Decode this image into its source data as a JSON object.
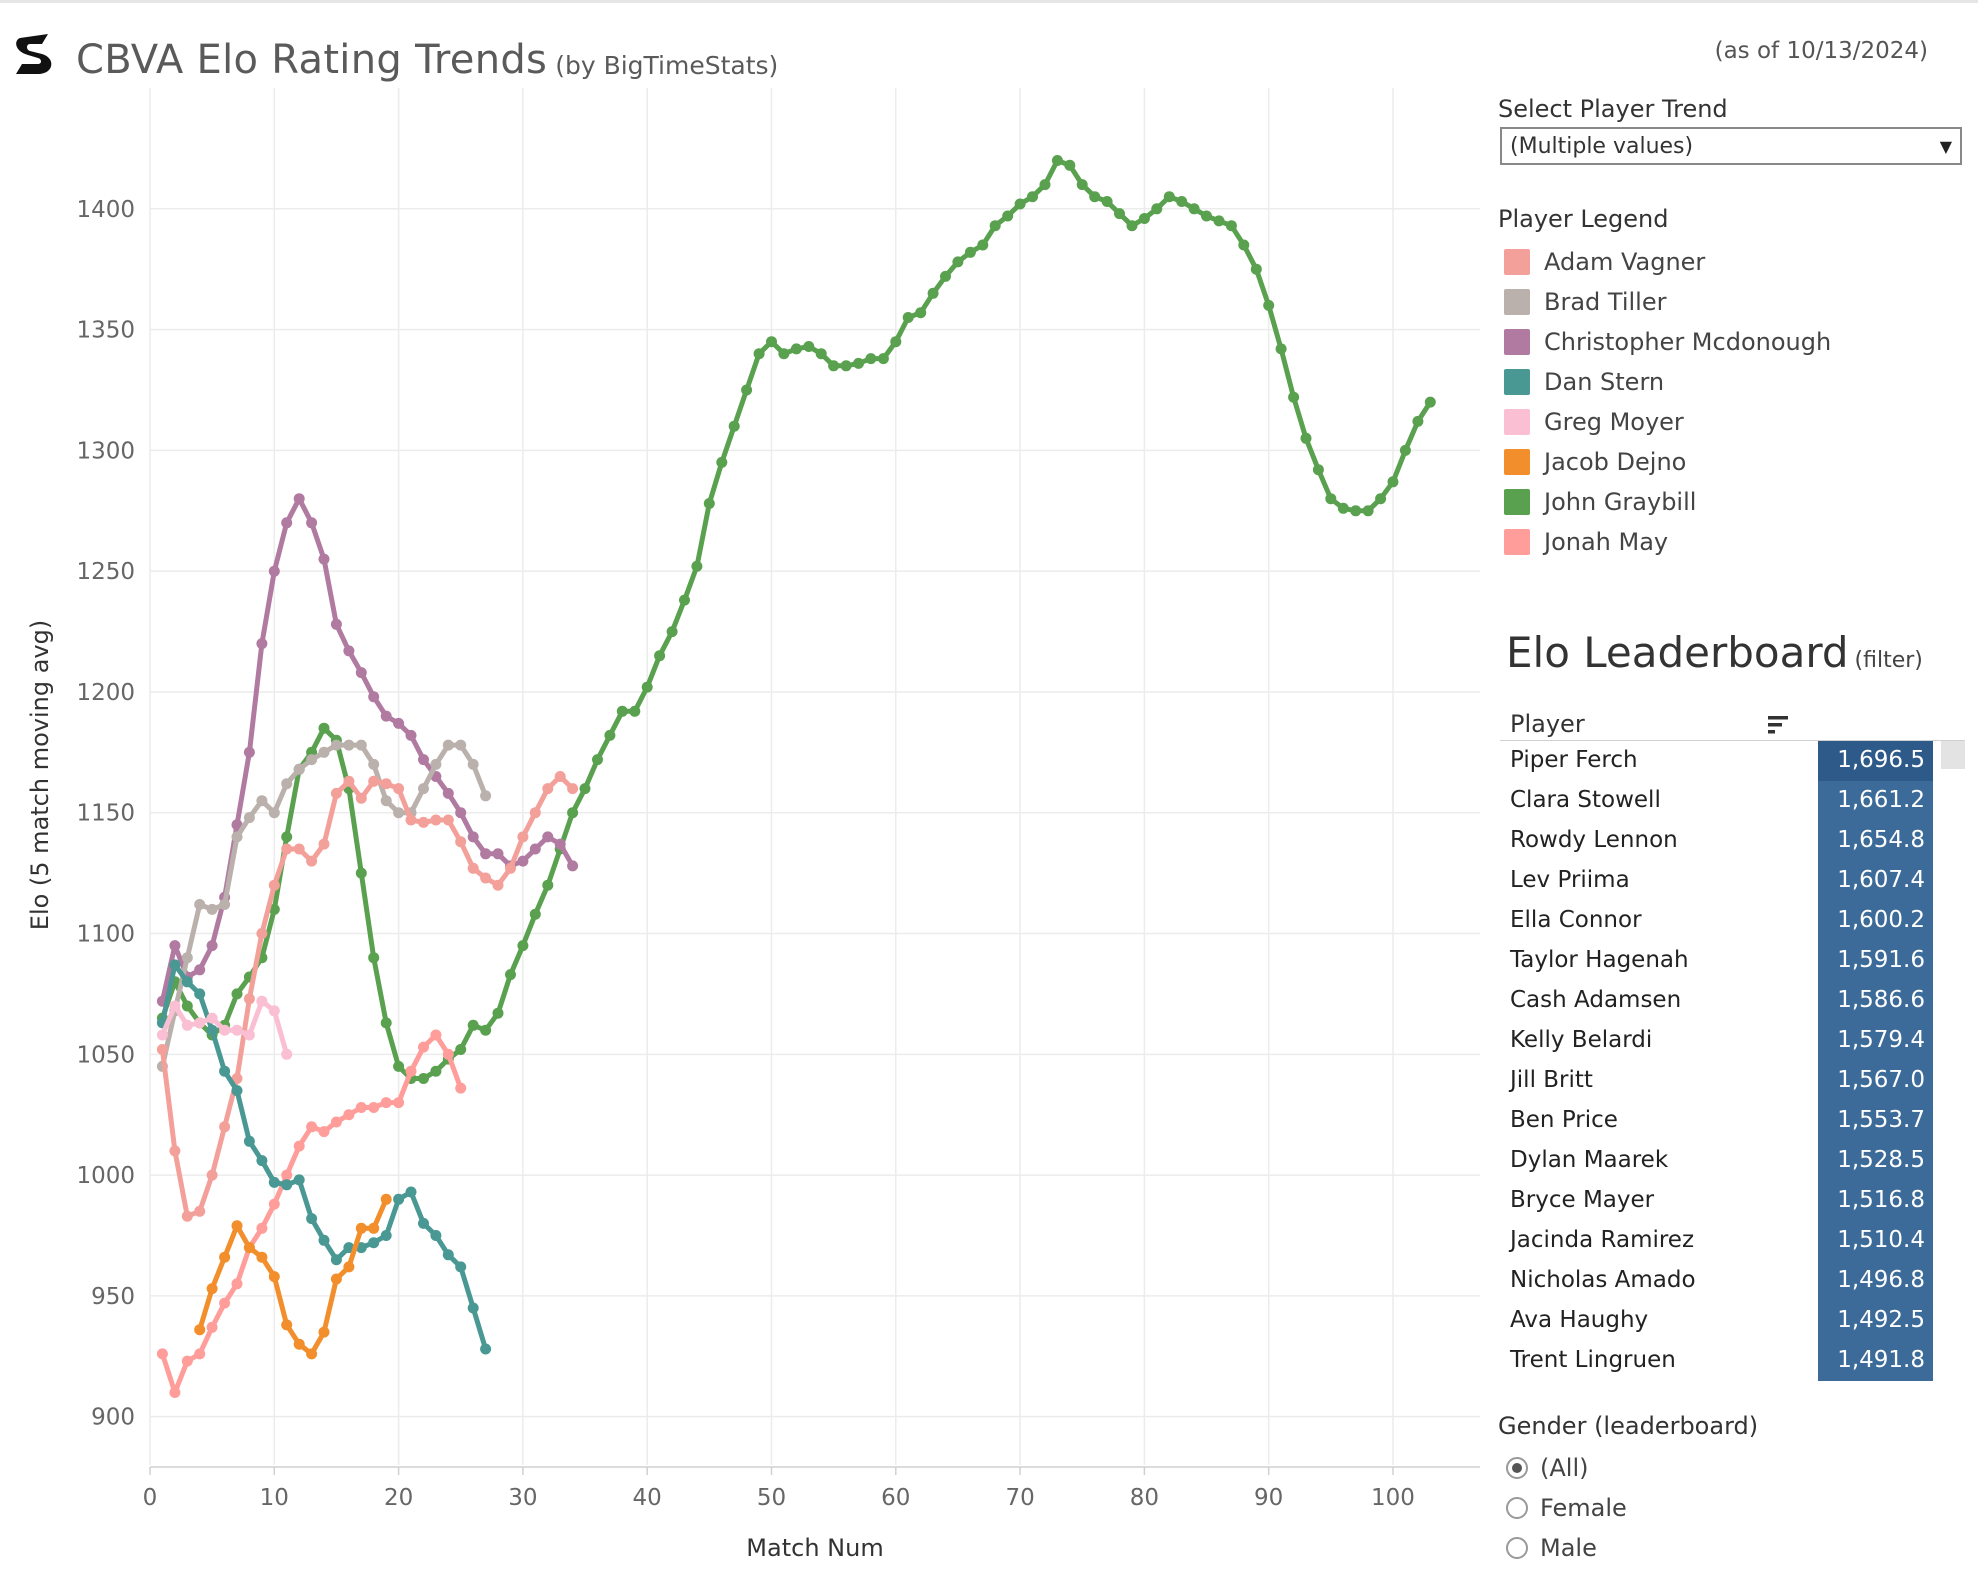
{
  "header": {
    "title": "CBVA Elo Rating Trends",
    "subtitle": "(by BigTimeStats)",
    "as_of": "(as of 10/13/2024)"
  },
  "controls": {
    "select_label": "Select Player Trend",
    "select_value": "(Multiple values)",
    "legend_title": "Player Legend"
  },
  "legend": [
    {
      "name": "Adam Vagner",
      "color": "#f4a09a"
    },
    {
      "name": "Brad Tiller",
      "color": "#bab0ac"
    },
    {
      "name": "Christopher Mcdonough",
      "color": "#b07aa1"
    },
    {
      "name": "Dan Stern",
      "color": "#499894"
    },
    {
      "name": "Greg Moyer",
      "color": "#fabfd2"
    },
    {
      "name": "Jacob Dejno",
      "color": "#f28e2b"
    },
    {
      "name": "John Graybill",
      "color": "#59a14f"
    },
    {
      "name": "Jonah May",
      "color": "#ff9d9a"
    }
  ],
  "leaderboard": {
    "title": "Elo Leaderboard",
    "filter_note": "(filter)",
    "column_header": "Player",
    "rows": [
      {
        "player": "Piper Ferch",
        "elo": "1,696.5"
      },
      {
        "player": "Clara Stowell",
        "elo": "1,661.2"
      },
      {
        "player": "Rowdy Lennon",
        "elo": "1,654.8"
      },
      {
        "player": "Lev Priima",
        "elo": "1,607.4"
      },
      {
        "player": "Ella Connor",
        "elo": "1,600.2"
      },
      {
        "player": "Taylor Hagenah",
        "elo": "1,591.6"
      },
      {
        "player": "Cash Adamsen",
        "elo": "1,586.6"
      },
      {
        "player": "Kelly Belardi",
        "elo": "1,579.4"
      },
      {
        "player": "Jill Britt",
        "elo": "1,567.0"
      },
      {
        "player": "Ben Price",
        "elo": "1,553.7"
      },
      {
        "player": "Dylan Maarek",
        "elo": "1,528.5"
      },
      {
        "player": "Bryce Mayer",
        "elo": "1,516.8"
      },
      {
        "player": "Jacinda Ramirez",
        "elo": "1,510.4"
      },
      {
        "player": "Nicholas Amado",
        "elo": "1,496.8"
      },
      {
        "player": "Ava Haughy",
        "elo": "1,492.5"
      },
      {
        "player": "Trent Lingruen",
        "elo": "1,491.8"
      }
    ]
  },
  "gender_filter": {
    "title": "Gender (leaderboard)",
    "options": [
      "(All)",
      "Female",
      "Male"
    ],
    "selected": "(All)"
  },
  "chart_data": {
    "type": "line",
    "xlabel": "Match Num",
    "ylabel": "Elo (5 match moving avg)",
    "xlim": [
      0,
      107
    ],
    "ylim": [
      880,
      1450
    ],
    "xticks": [
      0,
      10,
      20,
      30,
      40,
      50,
      60,
      70,
      80,
      90,
      100
    ],
    "yticks": [
      900,
      950,
      1000,
      1050,
      1100,
      1150,
      1200,
      1250,
      1300,
      1350,
      1400
    ],
    "grid": true,
    "legend": "right panel",
    "series": [
      {
        "name": "John Graybill",
        "color": "#59a14f",
        "x_start": 1,
        "values": [
          1065,
          1080,
          1070,
          1063,
          1058,
          1062,
          1075,
          1082,
          1090,
          1110,
          1140,
          1168,
          1175,
          1185,
          1180,
          1160,
          1125,
          1090,
          1063,
          1045,
          1040,
          1040,
          1043,
          1048,
          1052,
          1062,
          1060,
          1067,
          1083,
          1095,
          1108,
          1120,
          1135,
          1150,
          1160,
          1172,
          1182,
          1192,
          1192,
          1202,
          1215,
          1225,
          1238,
          1252,
          1278,
          1295,
          1310,
          1325,
          1340,
          1345,
          1340,
          1342,
          1343,
          1340,
          1335,
          1335,
          1336,
          1338,
          1338,
          1345,
          1355,
          1357,
          1365,
          1372,
          1378,
          1382,
          1385,
          1393,
          1397,
          1402,
          1405,
          1410,
          1420,
          1418,
          1410,
          1405,
          1403,
          1398,
          1393,
          1396,
          1400,
          1405,
          1403,
          1400,
          1397,
          1395,
          1393,
          1385,
          1375,
          1360,
          1342,
          1322,
          1305,
          1292,
          1280,
          1276,
          1275,
          1275,
          1280,
          1287,
          1300,
          1312,
          1320
        ]
      },
      {
        "name": "Christopher Mcdonough",
        "color": "#b07aa1",
        "x_start": 1,
        "values": [
          1072,
          1095,
          1082,
          1085,
          1095,
          1115,
          1145,
          1175,
          1220,
          1250,
          1270,
          1280,
          1270,
          1255,
          1228,
          1217,
          1208,
          1198,
          1190,
          1187,
          1182,
          1172,
          1165,
          1158,
          1150,
          1140,
          1133,
          1133,
          1128,
          1130,
          1135,
          1140,
          1137,
          1128
        ]
      },
      {
        "name": "Brad Tiller",
        "color": "#bab0ac",
        "x_start": 1,
        "values": [
          1045,
          1068,
          1090,
          1112,
          1110,
          1112,
          1140,
          1148,
          1155,
          1150,
          1162,
          1168,
          1172,
          1175,
          1178,
          1178,
          1178,
          1170,
          1155,
          1150,
          1150,
          1160,
          1170,
          1178,
          1178,
          1170,
          1157
        ]
      },
      {
        "name": "Adam Vagner",
        "color": "#f4a09a",
        "x_start": 1,
        "values": [
          1052,
          1010,
          983,
          985,
          1000,
          1020,
          1040,
          1073,
          1100,
          1120,
          1135,
          1135,
          1130,
          1137,
          1158,
          1163,
          1156,
          1163,
          1162,
          1160,
          1147,
          1146,
          1147,
          1147,
          1138,
          1127,
          1123,
          1120,
          1127,
          1140,
          1150,
          1160,
          1165,
          1160
        ]
      },
      {
        "name": "Jonah May",
        "color": "#ff9d9a",
        "x_start": 1,
        "values": [
          926,
          910,
          923,
          926,
          937,
          947,
          955,
          970,
          978,
          988,
          1000,
          1012,
          1020,
          1018,
          1022,
          1025,
          1028,
          1028,
          1030,
          1030,
          1043,
          1053,
          1058,
          1050,
          1036
        ]
      },
      {
        "name": "Dan Stern",
        "color": "#499894",
        "x_start": 1,
        "values": [
          1063,
          1087,
          1080,
          1075,
          1060,
          1043,
          1035,
          1014,
          1006,
          997,
          996,
          998,
          982,
          973,
          965,
          970,
          970,
          972,
          975,
          990,
          993,
          980,
          975,
          967,
          962,
          945,
          928
        ]
      },
      {
        "name": "Jacob Dejno",
        "color": "#f28e2b",
        "x_start": 4,
        "values": [
          936,
          953,
          966,
          979,
          970,
          966,
          958,
          938,
          930,
          926,
          935,
          957,
          962,
          978,
          978,
          990
        ]
      },
      {
        "name": "Greg Moyer",
        "color": "#fabfd2",
        "x_start": 1,
        "values": [
          1058,
          1070,
          1062,
          1063,
          1065,
          1060,
          1060,
          1058,
          1072,
          1068,
          1050
        ]
      }
    ]
  }
}
